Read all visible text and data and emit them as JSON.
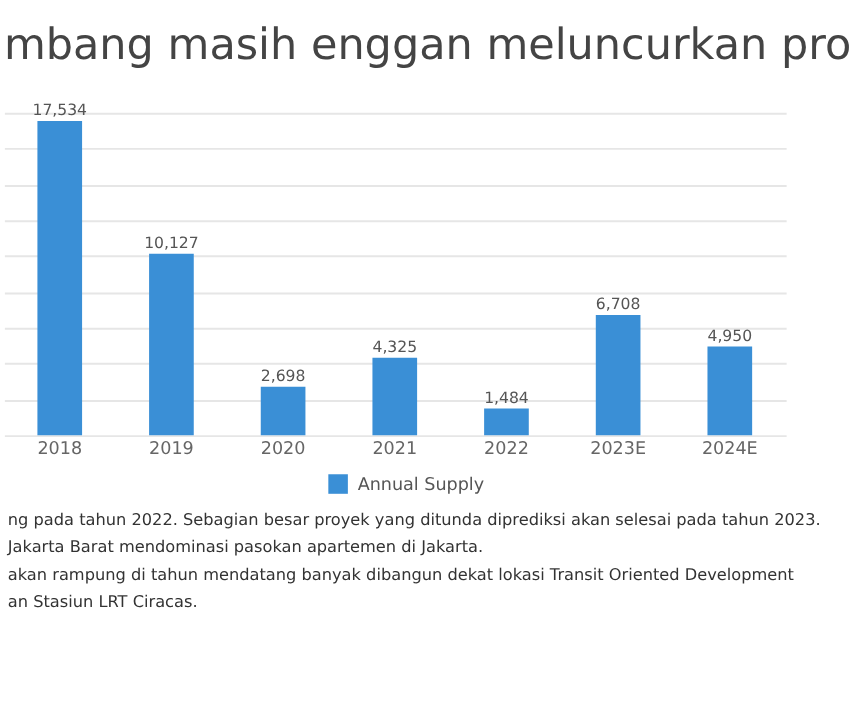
{
  "chart_data": {
    "type": "bar",
    "title": "mbang masih enggan meluncurkan pro",
    "categories": [
      "2018",
      "2019",
      "2020",
      "2021",
      "2022",
      "2023E",
      "2024E"
    ],
    "series": [
      {
        "name": "Annual Supply",
        "color": "#3a8fd6",
        "values": [
          17534,
          10127,
          2698,
          4325,
          1484,
          6708,
          4950
        ],
        "value_labels": [
          "17,534",
          "10,127",
          "2,698",
          "4,325",
          "1,484",
          "6,708",
          "4,950"
        ]
      }
    ],
    "tick_labels": "x",
    "grid": "y",
    "legend": "bottom",
    "annotations": [
      "ng pada tahun 2022. Sebagian besar proyek yang ditunda diprediksi akan selesai pada tahun 2023.",
      "Jakarta Barat mendominasi pasokan apartemen di Jakarta.",
      "akan rampung di tahun mendatang banyak dibangun dekat lokasi Transit Oriented Development",
      "an Stasiun LRT Ciracas."
    ]
  }
}
